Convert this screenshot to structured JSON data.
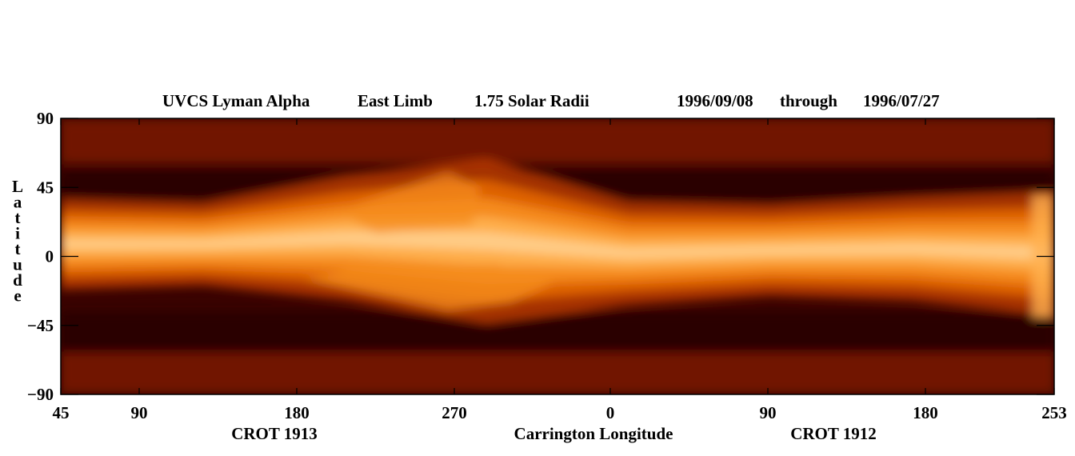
{
  "chart_data": {
    "type": "heatmap",
    "title": {
      "instrument": "UVCS Lyman Alpha",
      "limb": "East Limb",
      "height": "1.75 Solar Radii",
      "date_start": "1996/09/08",
      "through": "through",
      "date_end": "1996/07/27"
    },
    "ylabel": "Latitude",
    "xlabel": "Carrington Longitude",
    "rotation_labels": [
      "CROT 1913",
      "CROT 1912"
    ],
    "ylim": [
      -90,
      90
    ],
    "y_ticks": [
      90,
      45,
      0,
      -45,
      -90
    ],
    "y_tick_labels": [
      "90",
      "45",
      "0",
      "−45",
      "−90"
    ],
    "x_ticks": [
      "45",
      "90",
      "180",
      "270",
      "0",
      "90",
      "180",
      "253"
    ],
    "grid": false,
    "colormap": [
      "#2a0000",
      "#5a0a00",
      "#8a1f00",
      "#b83a00",
      "#e06400",
      "#f58c1e",
      "#ffb050",
      "#ffd9a0"
    ],
    "streamer_band": {
      "description_longitudes": [
        "45",
        "90",
        "180",
        "270",
        "0",
        "90",
        "180",
        "253"
      ],
      "center_latitude": [
        8,
        8,
        12,
        10,
        2,
        4,
        5,
        2
      ],
      "half_width": [
        22,
        20,
        30,
        40,
        25,
        22,
        25,
        30
      ]
    }
  }
}
